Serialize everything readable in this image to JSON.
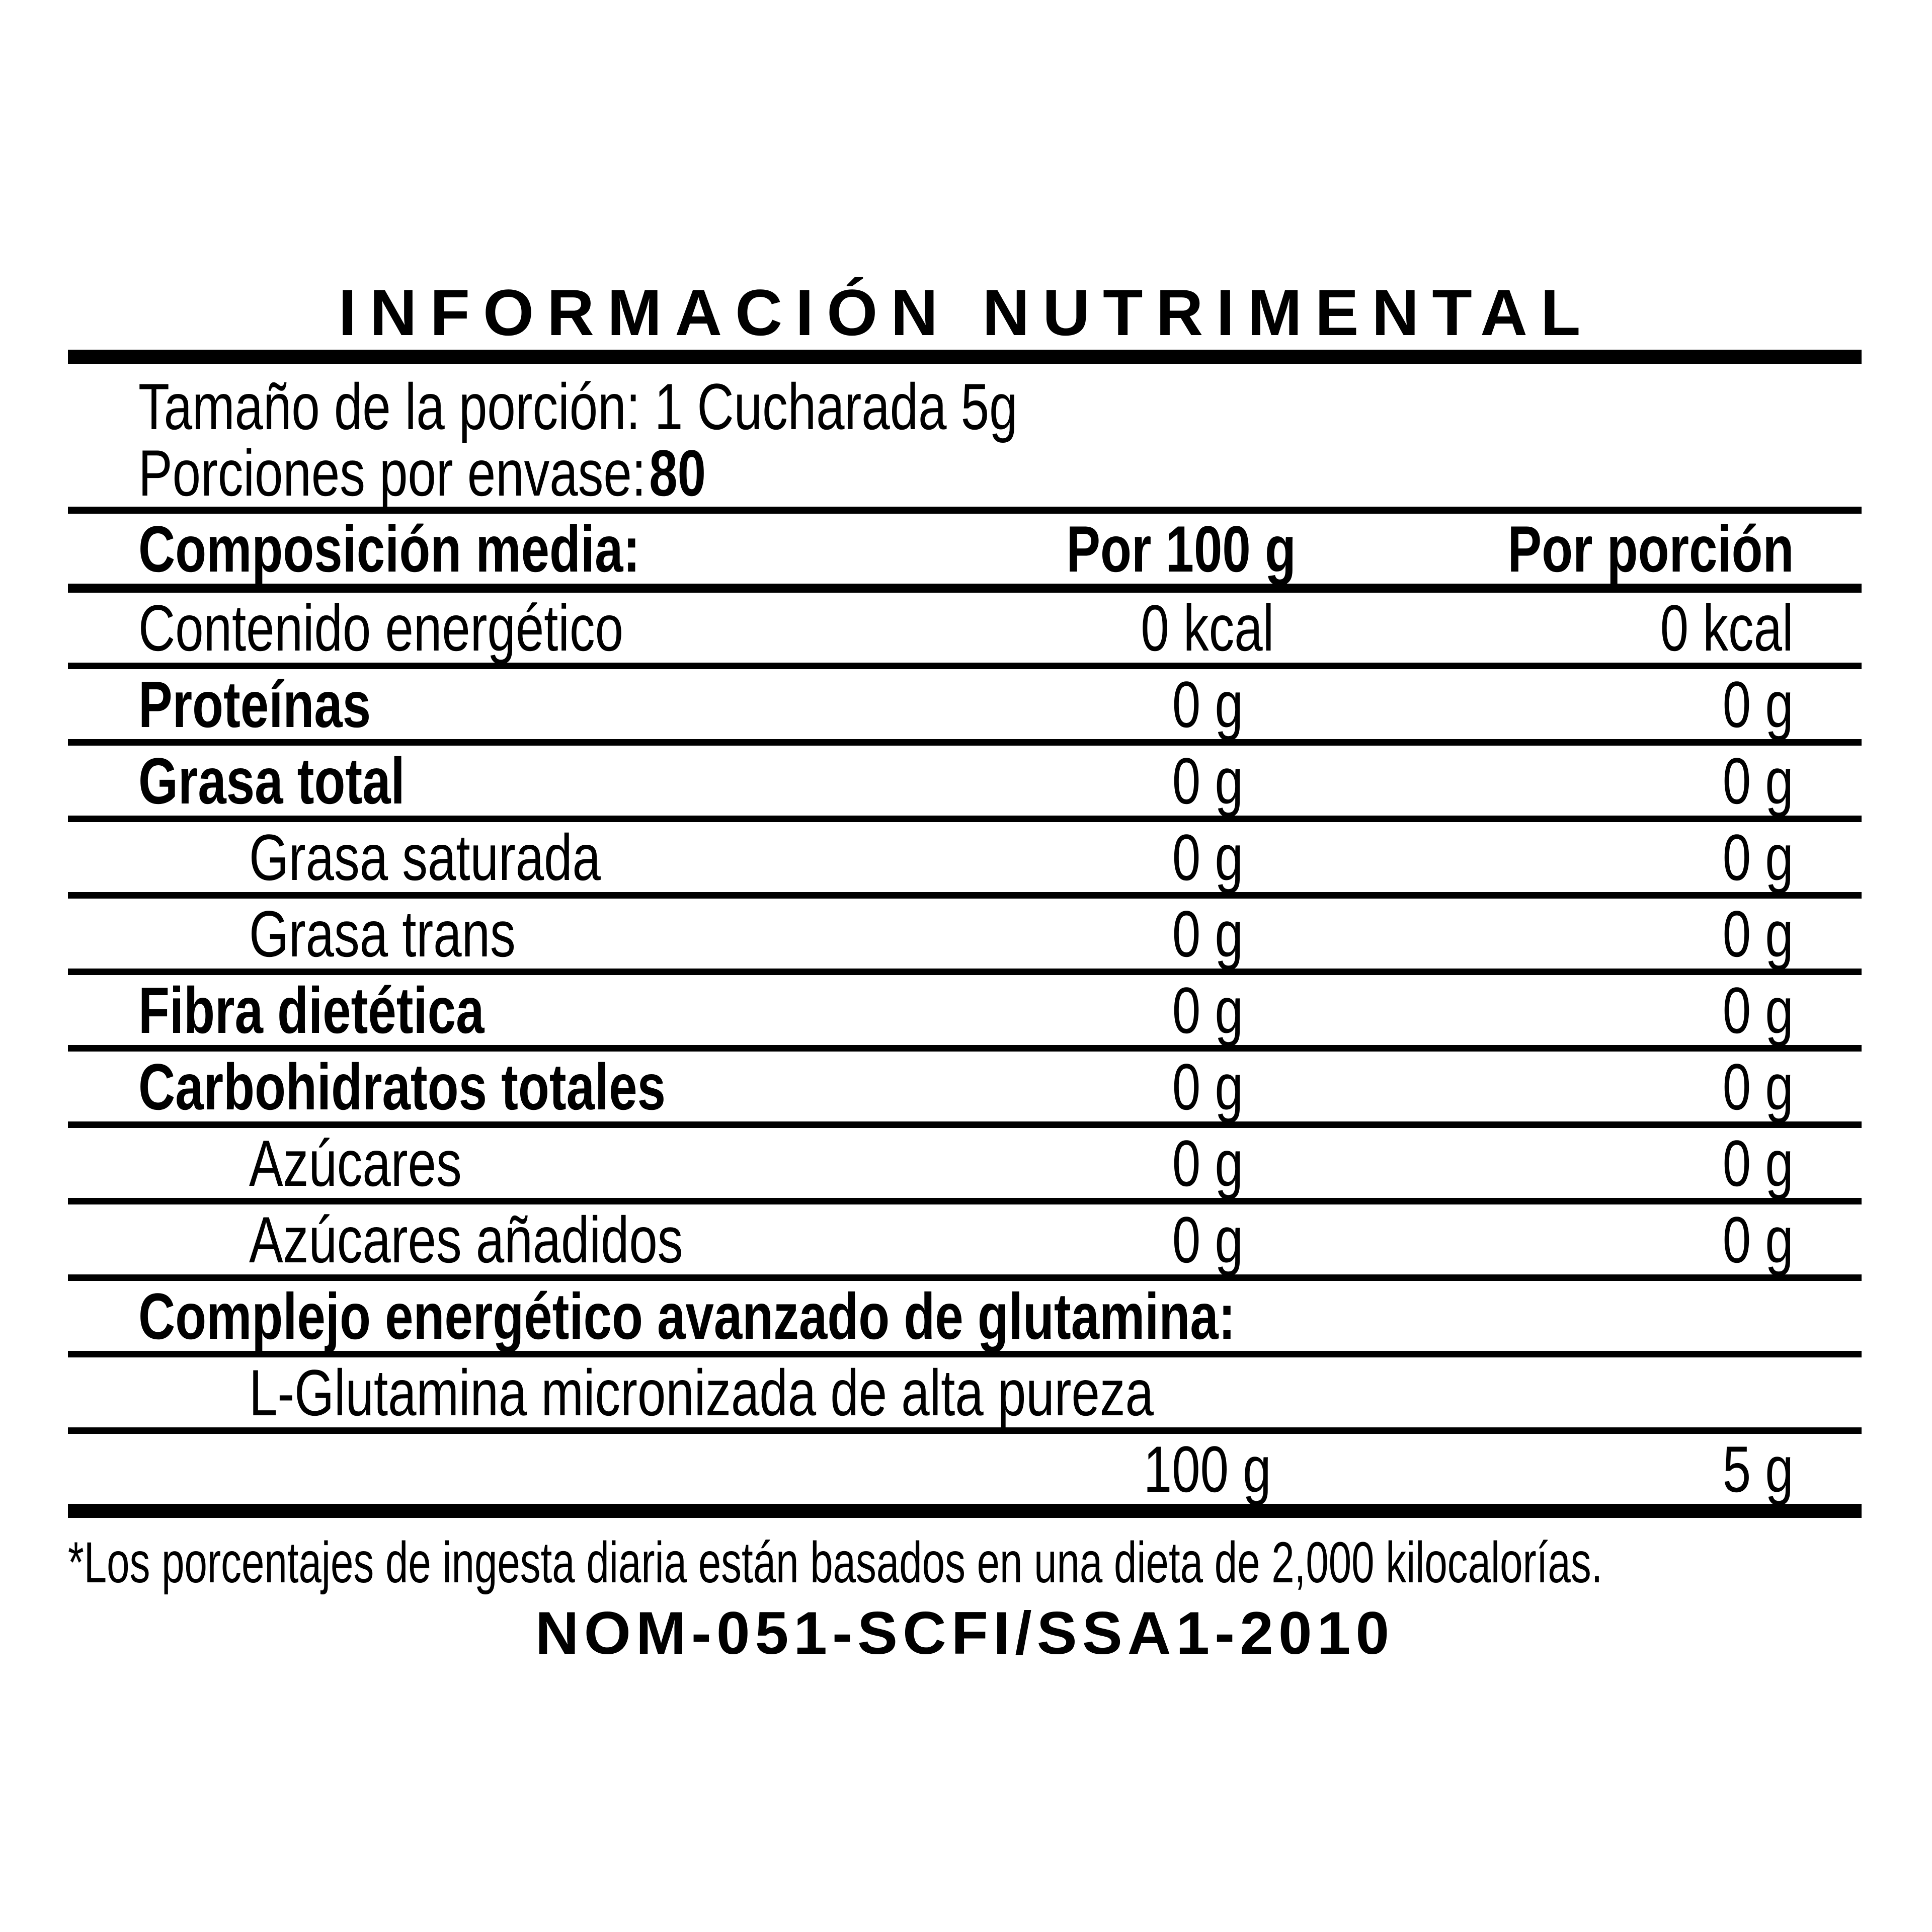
{
  "title": "INFORMACIÓN NUTRIMENTAL",
  "serving": {
    "size_line": "Tamaño de la porción: 1 Cucharada 5g",
    "servings_label": "Porciones por envase:",
    "servings_value": "80"
  },
  "table": {
    "header": {
      "col1": "Composición media:",
      "col2": "Por 100 g",
      "col3": "Por porción"
    },
    "rows": [
      {
        "label": "Contenido energético",
        "per_100g": "0 kcal",
        "per_serving": "0 kcal",
        "bold": false,
        "indent": false
      },
      {
        "label": "Proteínas",
        "per_100g": "0 g",
        "per_serving": "0 g",
        "bold": true,
        "indent": false
      },
      {
        "label": "Grasa total",
        "per_100g": "0 g",
        "per_serving": "0 g",
        "bold": true,
        "indent": false
      },
      {
        "label": "Grasa saturada",
        "per_100g": "0 g",
        "per_serving": "0 g",
        "bold": false,
        "indent": true
      },
      {
        "label": "Grasa trans",
        "per_100g": "0 g",
        "per_serving": "0 g",
        "bold": false,
        "indent": true
      },
      {
        "label": "Fibra dietética",
        "per_100g": "0 g",
        "per_serving": "0 g",
        "bold": true,
        "indent": false
      },
      {
        "label": "Carbohidratos totales",
        "per_100g": "0 g",
        "per_serving": "0 g",
        "bold": true,
        "indent": false
      },
      {
        "label": "Azúcares",
        "per_100g": "0 g",
        "per_serving": "0 g",
        "bold": false,
        "indent": true
      },
      {
        "label": "Azúcares añadidos",
        "per_100g": "0 g",
        "per_serving": "0 g",
        "bold": false,
        "indent": true
      },
      {
        "label": "Complejo energético avanzado de glutamina:",
        "per_100g": "",
        "per_serving": "",
        "bold": true,
        "indent": false
      },
      {
        "label": "L-Glutamina micronizada de alta pureza",
        "per_100g": "",
        "per_serving": "",
        "bold": false,
        "indent": true
      },
      {
        "label": "",
        "per_100g": "100 g",
        "per_serving": "5 g",
        "bold": false,
        "indent": false
      }
    ]
  },
  "footnote": "*Los porcentajes de ingesta diaria están basados en una dieta de 2,000 kilocalorías.",
  "regulation": "NOM-051-SCFI/SSA1-2010",
  "colors": {
    "ink": "#000000",
    "background": "#ffffff"
  }
}
